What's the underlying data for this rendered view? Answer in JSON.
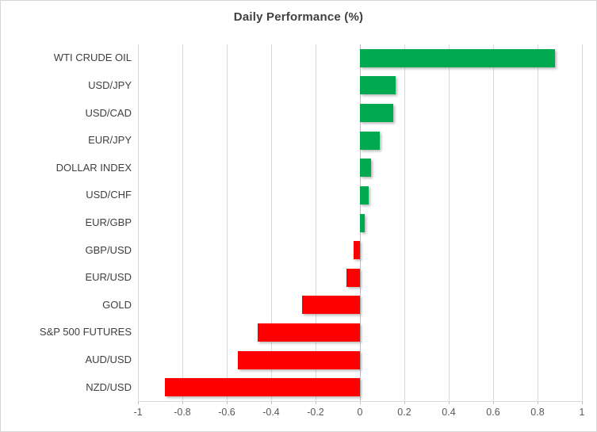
{
  "chart_data": {
    "type": "bar",
    "orientation": "horizontal",
    "title": "Daily Performance (%)",
    "categories": [
      "WTI CRUDE OIL",
      "USD/JPY",
      "USD/CAD",
      "EUR/JPY",
      "DOLLAR INDEX",
      "USD/CHF",
      "EUR/GBP",
      "GBP/USD",
      "EUR/USD",
      "GOLD",
      "S&P 500 FUTURES",
      "AUD/USD",
      "NZD/USD"
    ],
    "values": [
      0.88,
      0.16,
      0.15,
      0.09,
      0.05,
      0.04,
      0.02,
      -0.03,
      -0.06,
      -0.26,
      -0.46,
      -0.55,
      -0.88
    ],
    "xlim": [
      -1,
      1
    ],
    "x_ticks": [
      -1,
      -0.8,
      -0.6,
      -0.4,
      -0.2,
      0,
      0.2,
      0.4,
      0.6,
      0.8,
      1
    ],
    "x_tick_labels": [
      "-1",
      "-0.8",
      "-0.6",
      "-0.4",
      "-0.2",
      "0",
      "0.2",
      "0.4",
      "0.6",
      "0.8",
      "1"
    ],
    "grid": true,
    "legend": false,
    "colors": {
      "positive": "#00A850",
      "negative": "#FF0000",
      "gridline": "#D9D9D9",
      "title_text": "#404040",
      "axis_text": "#595959"
    }
  }
}
